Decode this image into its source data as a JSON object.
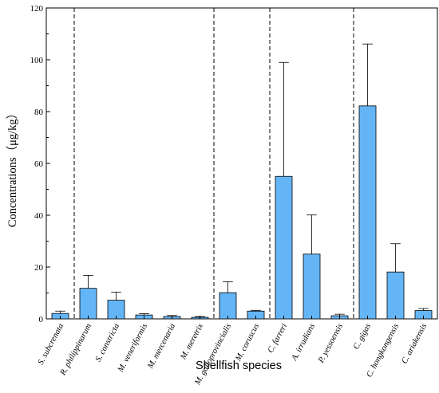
{
  "chart_data": {
    "type": "bar",
    "xlabel": "Shellfish  species",
    "ylabel": "Concentrations（μg/kg）",
    "ylim": [
      0,
      120
    ],
    "yticks": [
      0,
      20,
      40,
      60,
      80,
      100,
      120
    ],
    "categories": [
      "S. subcrenata",
      "R. philippinarum",
      "S. constricta",
      "M. veneriformis",
      "M. mercenaria",
      "M. meretrix",
      "M. galloprovincialis",
      "M. coruscus",
      "C. farreri",
      "A. irradians",
      "P. yessoensis",
      "C. gigas",
      "C. hongkongensis",
      "C. ariakensis"
    ],
    "values": [
      2.1,
      11.8,
      7.2,
      1.5,
      0.9,
      0.6,
      10.1,
      3.0,
      55.0,
      25.0,
      1.2,
      82.2,
      18.1,
      3.2
    ],
    "error_upper": [
      3.0,
      16.8,
      10.3,
      2.0,
      1.3,
      0.9,
      14.3,
      3.3,
      99.0,
      40.1,
      1.8,
      106.1,
      29.0,
      4.0
    ],
    "group_separators_after_index": [
      0,
      5,
      7,
      10
    ],
    "bar_color": "#64b5f6",
    "bar_edge_color": "#000000",
    "grid": false
  }
}
